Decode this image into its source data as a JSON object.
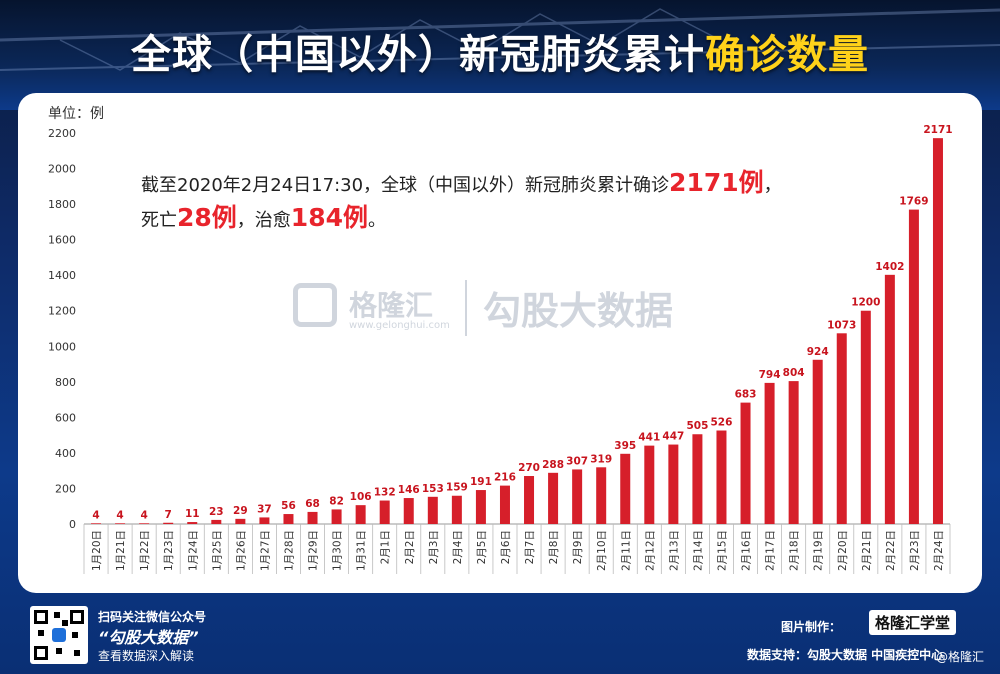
{
  "title": {
    "main": "全球（中国以外）新冠肺炎累计",
    "highlight": "确诊数量"
  },
  "annotation": {
    "prefix": "截至2020年2月24日17:30，全球（中国以外）新冠肺炎累计确诊",
    "confirmed": "2171例",
    "comma": "，",
    "deaths_prefix": "死亡",
    "deaths": "28例",
    "sep": "，治愈",
    "recovered": "184例",
    "end": "。"
  },
  "watermark": {
    "brand": "格隆汇",
    "site": "www.gelonghui.com",
    "slogan": "勾股大数据"
  },
  "footer": {
    "scan": "扫码关注微信公众号",
    "account": "“勾股大数据”",
    "tagline": "查看数据深入解读",
    "credit_label": "图片制作：",
    "credit_brand": "格隆汇学堂",
    "source": "数据支持：勾股大数据  中国疾控中心",
    "corner": "@格隆汇"
  },
  "colors": {
    "bar": "#d61f2a",
    "label": "#c8141e",
    "highlight": "#ffd21a"
  },
  "chart_data": {
    "type": "bar",
    "ylabel": "单位：例",
    "ylim": [
      0,
      2200
    ],
    "yticks": [
      0,
      200,
      400,
      600,
      800,
      1000,
      1200,
      1400,
      1600,
      1800,
      2000,
      2200
    ],
    "grid": false,
    "categories": [
      "1月20日",
      "1月21日",
      "1月22日",
      "1月23日",
      "1月24日",
      "1月25日",
      "1月26日",
      "1月27日",
      "1月28日",
      "1月29日",
      "1月30日",
      "1月31日",
      "2月1日",
      "2月2日",
      "2月3日",
      "2月4日",
      "2月5日",
      "2月6日",
      "2月7日",
      "2月8日",
      "2月9日",
      "2月10日",
      "2月11日",
      "2月12日",
      "2月13日",
      "2月14日",
      "2月15日",
      "2月16日",
      "2月17日",
      "2月18日",
      "2月19日",
      "2月20日",
      "2月21日",
      "2月22日",
      "2月23日",
      "2月24日"
    ],
    "values": [
      4,
      4,
      4,
      7,
      11,
      23,
      29,
      37,
      56,
      68,
      82,
      106,
      132,
      146,
      153,
      159,
      191,
      216,
      270,
      288,
      307,
      319,
      395,
      441,
      447,
      505,
      526,
      683,
      794,
      804,
      924,
      1073,
      1200,
      1402,
      1769,
      2171
    ]
  }
}
